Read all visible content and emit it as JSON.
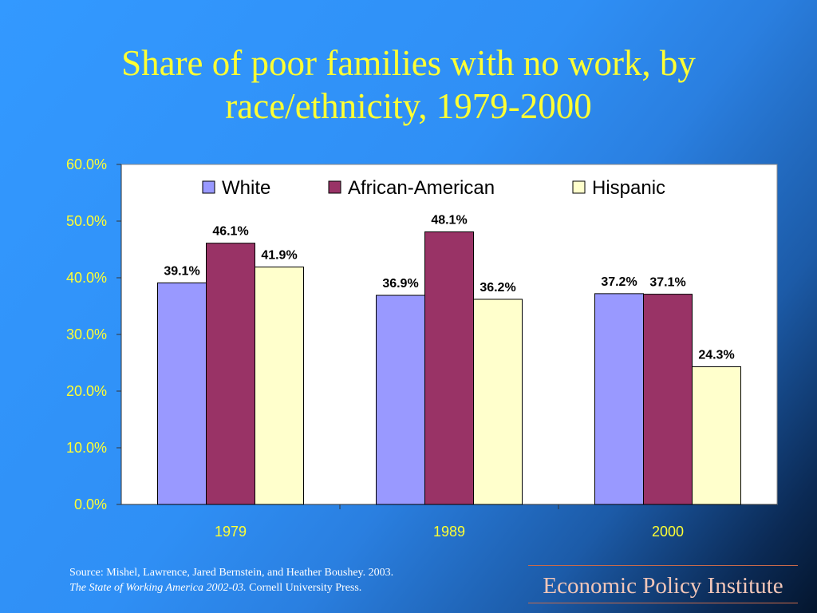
{
  "title": "Share of poor families with no work, by race/ethnicity, 1979-2000",
  "chart_data": {
    "type": "bar",
    "categories": [
      "1979",
      "1989",
      "2000"
    ],
    "series": [
      {
        "name": "White",
        "values": [
          39.1,
          36.9,
          37.2
        ],
        "labels": [
          "39.1%",
          "36.9%",
          "37.2%"
        ],
        "color": "#9999ff"
      },
      {
        "name": "African-American",
        "values": [
          46.1,
          48.1,
          37.1
        ],
        "labels": [
          "46.1%",
          "48.1%",
          "37.1%"
        ],
        "color": "#993366"
      },
      {
        "name": "Hispanic",
        "values": [
          41.9,
          36.2,
          24.3
        ],
        "labels": [
          "41.9%",
          "36.2%",
          "24.3%"
        ],
        "color": "#ffffcc"
      }
    ],
    "y_ticks": [
      "0.0%",
      "10.0%",
      "20.0%",
      "30.0%",
      "40.0%",
      "50.0%",
      "60.0%"
    ],
    "ylim": [
      0,
      60
    ],
    "legend_position": "top",
    "grid": false
  },
  "source": {
    "line1": "Source:  Mishel, Lawrence, Jared Bernstein, and Heather Boushey. 2003.",
    "line2_italic": "The State of Working America 2002-03.",
    "line2_rest": " Cornell University Press."
  },
  "brand": "Economic Policy Institute"
}
